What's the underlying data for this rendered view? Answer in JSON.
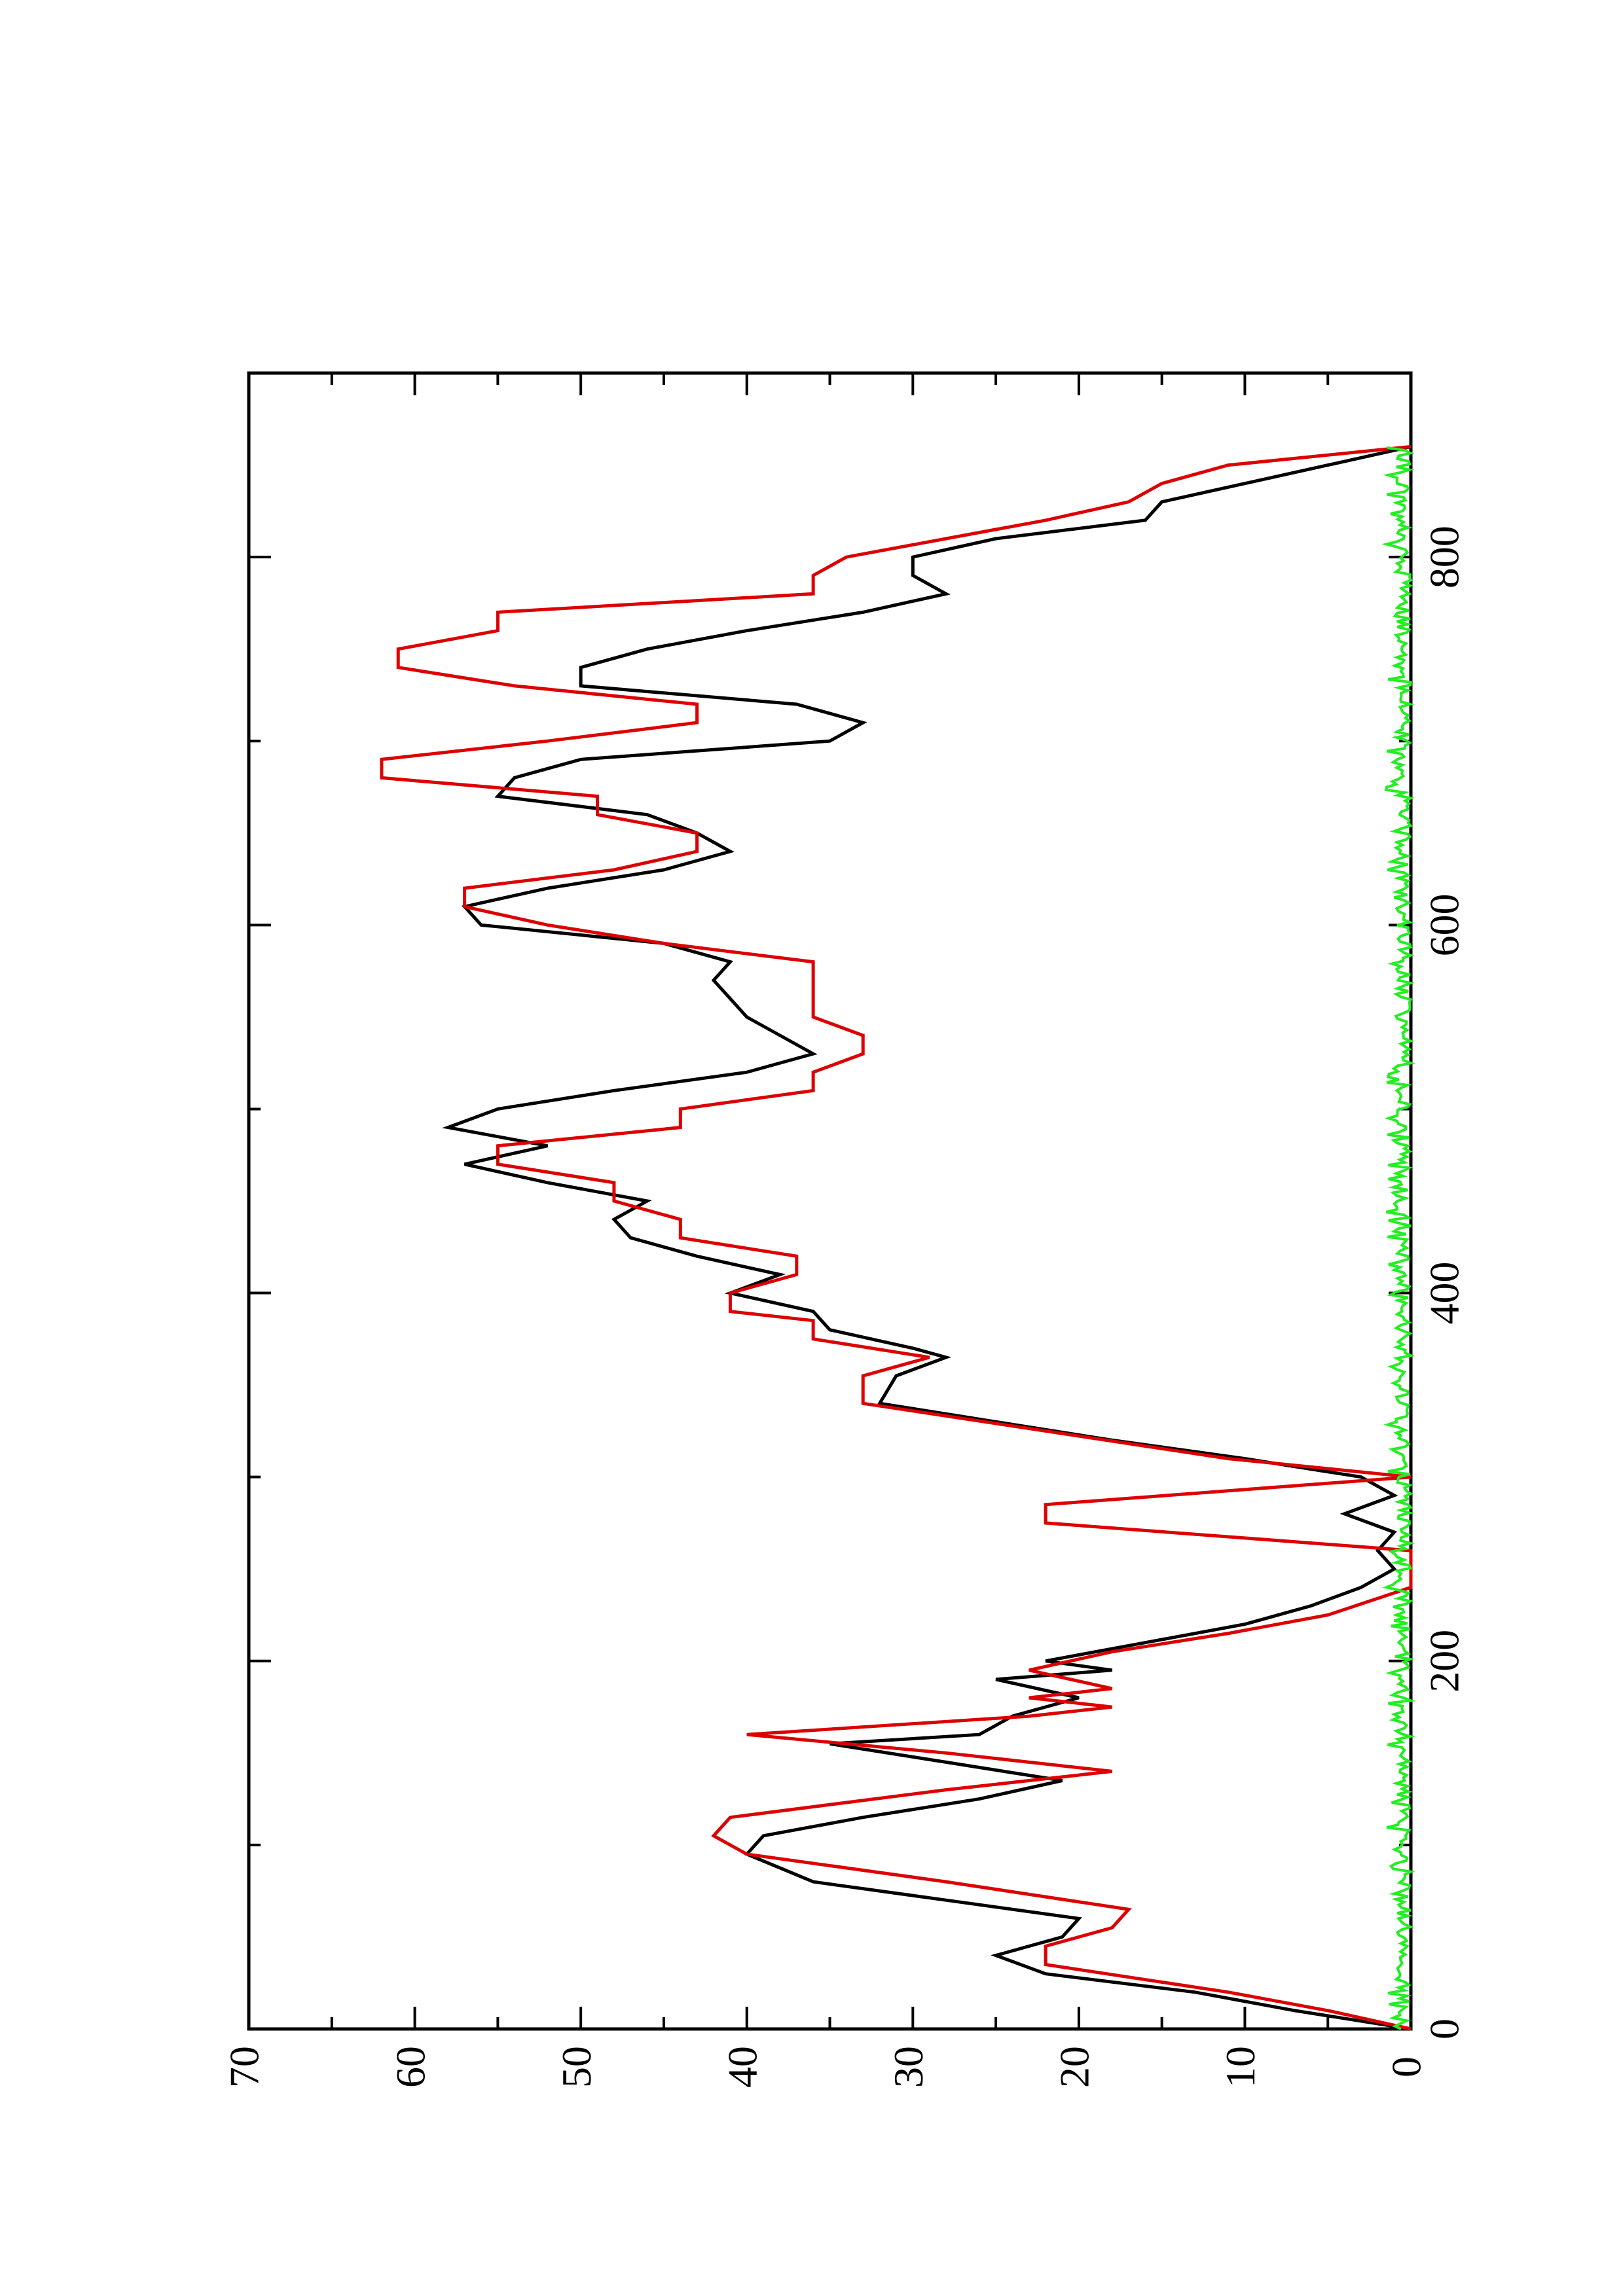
{
  "chart_data": {
    "type": "line",
    "orientation": "rotated-90-ccw",
    "title": "",
    "xlabel": "",
    "ylabel": "",
    "xlim": [
      0,
      900
    ],
    "ylim": [
      0,
      70
    ],
    "x_ticks": [
      0,
      200,
      400,
      600,
      800
    ],
    "y_ticks": [
      0,
      10,
      20,
      30,
      40,
      50,
      60,
      70
    ],
    "grid": false,
    "legend": "none",
    "series": [
      {
        "color": "#000000",
        "style": "smooth",
        "x": [
          0,
          10,
          20,
          30,
          40,
          50,
          60,
          70,
          80,
          95,
          105,
          115,
          125,
          135,
          145,
          155,
          160,
          170,
          180,
          190,
          195,
          200,
          210,
          220,
          230,
          240,
          250,
          260,
          270,
          280,
          290,
          300,
          310,
          320,
          330,
          340,
          355,
          365,
          370,
          380,
          390,
          400,
          410,
          420,
          430,
          440,
          450,
          460,
          470,
          480,
          490,
          500,
          510,
          520,
          530,
          540,
          550,
          560,
          570,
          580,
          590,
          600,
          610,
          620,
          630,
          640,
          650,
          660,
          670,
          680,
          690,
          700,
          710,
          720,
          730,
          740,
          750,
          760,
          770,
          780,
          790,
          800,
          810,
          820,
          830,
          840,
          850,
          860
        ],
        "y": [
          0,
          7,
          13,
          22,
          25,
          21,
          20,
          28,
          36,
          40,
          39,
          33,
          26,
          21,
          28,
          35,
          26,
          24,
          20,
          25,
          18,
          22,
          16,
          10,
          6,
          3,
          1,
          2,
          1,
          4,
          1,
          3,
          10,
          18,
          25,
          32,
          31,
          28,
          30,
          35,
          36,
          41,
          38,
          43,
          47,
          48,
          46,
          52,
          57,
          52,
          58,
          55,
          48,
          40,
          36,
          38,
          40,
          41,
          42,
          41,
          45,
          56,
          57,
          52,
          45,
          41,
          43,
          46,
          55,
          54,
          50,
          35,
          33,
          37,
          50,
          50,
          46,
          40,
          33,
          28,
          30,
          30,
          25,
          16,
          15,
          10,
          5,
          0
        ]
      },
      {
        "color": "#dd0000",
        "style": "step",
        "x": [
          0,
          10,
          20,
          35,
          45,
          55,
          65,
          80,
          95,
          105,
          115,
          130,
          140,
          150,
          160,
          170,
          175,
          180,
          185,
          195,
          205,
          215,
          225,
          240,
          260,
          275,
          285,
          300,
          310,
          325,
          340,
          355,
          365,
          375,
          385,
          390,
          400,
          410,
          420,
          430,
          440,
          450,
          460,
          470,
          480,
          490,
          500,
          510,
          520,
          530,
          540,
          550,
          560,
          570,
          580,
          590,
          600,
          610,
          620,
          630,
          640,
          650,
          660,
          670,
          680,
          690,
          700,
          710,
          720,
          730,
          740,
          750,
          760,
          770,
          780,
          790,
          800,
          810,
          820,
          830,
          840,
          850,
          860
        ],
        "y": [
          0,
          5,
          11,
          22,
          22,
          18,
          17,
          28,
          40,
          42,
          41,
          28,
          18,
          28,
          40,
          23,
          18,
          23,
          18,
          23,
          18,
          11,
          5,
          0,
          0,
          22,
          22,
          0,
          11,
          22,
          33,
          33,
          29,
          36,
          36,
          41,
          41,
          37,
          37,
          44,
          44,
          48,
          48,
          55,
          55,
          44,
          44,
          36,
          36,
          33,
          33,
          36,
          36,
          36,
          36,
          45,
          52,
          57,
          57,
          48,
          43,
          43,
          49,
          49,
          62,
          62,
          52,
          43,
          43,
          54,
          61,
          61,
          55,
          55,
          36,
          36,
          34,
          28,
          22,
          17,
          15,
          11,
          0
        ]
      },
      {
        "color": "#22ee22",
        "style": "noise",
        "amplitude": 1.5,
        "x_range": [
          0,
          860
        ]
      }
    ]
  }
}
